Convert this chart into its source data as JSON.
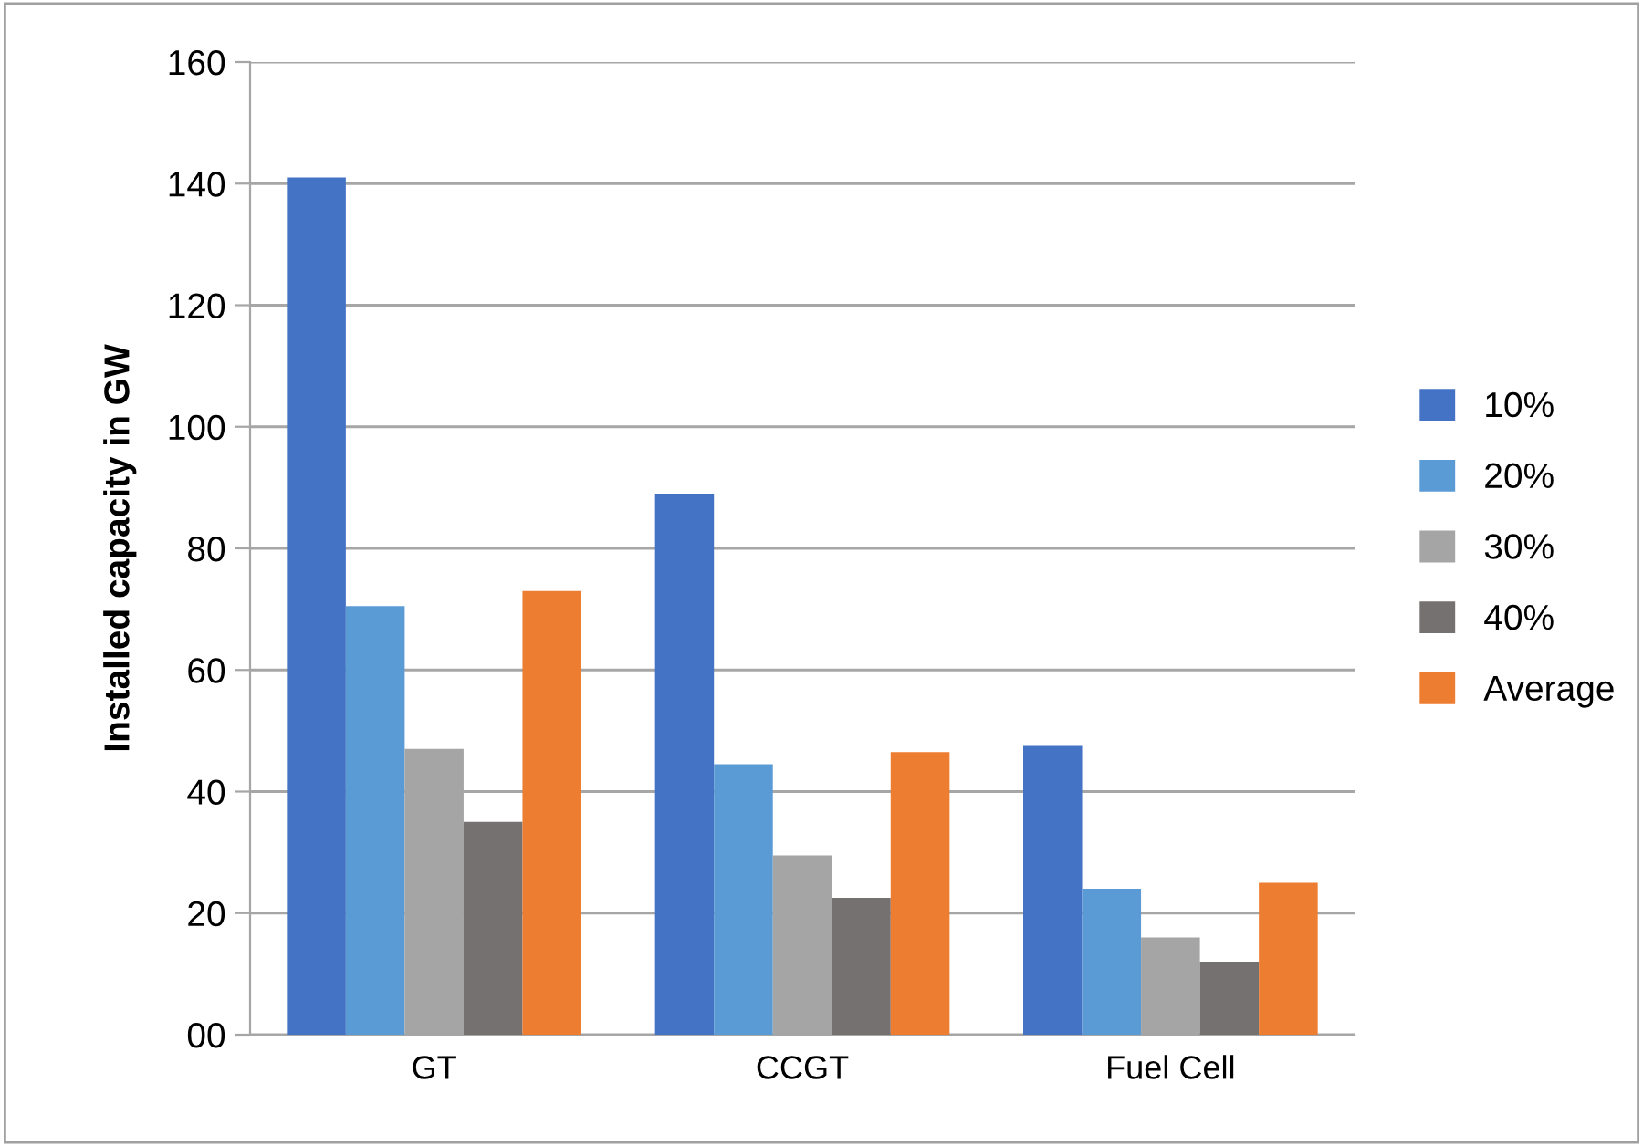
{
  "chart_data": {
    "type": "bar",
    "ylabel": "Installed capacity in GW",
    "categories": [
      "GT",
      "CCGT",
      "Fuel Cell"
    ],
    "series": [
      {
        "name": "10%",
        "color": "#4472c4",
        "values": [
          141,
          89,
          47.5
        ]
      },
      {
        "name": "20%",
        "color": "#5b9bd5",
        "values": [
          70.5,
          44.5,
          24
        ]
      },
      {
        "name": "30%",
        "color": "#a5a5a5",
        "values": [
          47,
          29.5,
          16
        ]
      },
      {
        "name": "40%",
        "color": "#767171",
        "values": [
          35,
          22.5,
          12
        ]
      },
      {
        "name": "Average",
        "color": "#ed7d31",
        "values": [
          73,
          46.5,
          25
        ]
      }
    ],
    "ylim": [
      0,
      160
    ],
    "yticks": [
      {
        "value": 0,
        "label": "00"
      },
      20,
      40,
      60,
      80,
      100,
      120,
      140,
      160
    ],
    "grid": "y",
    "legend": "right"
  }
}
